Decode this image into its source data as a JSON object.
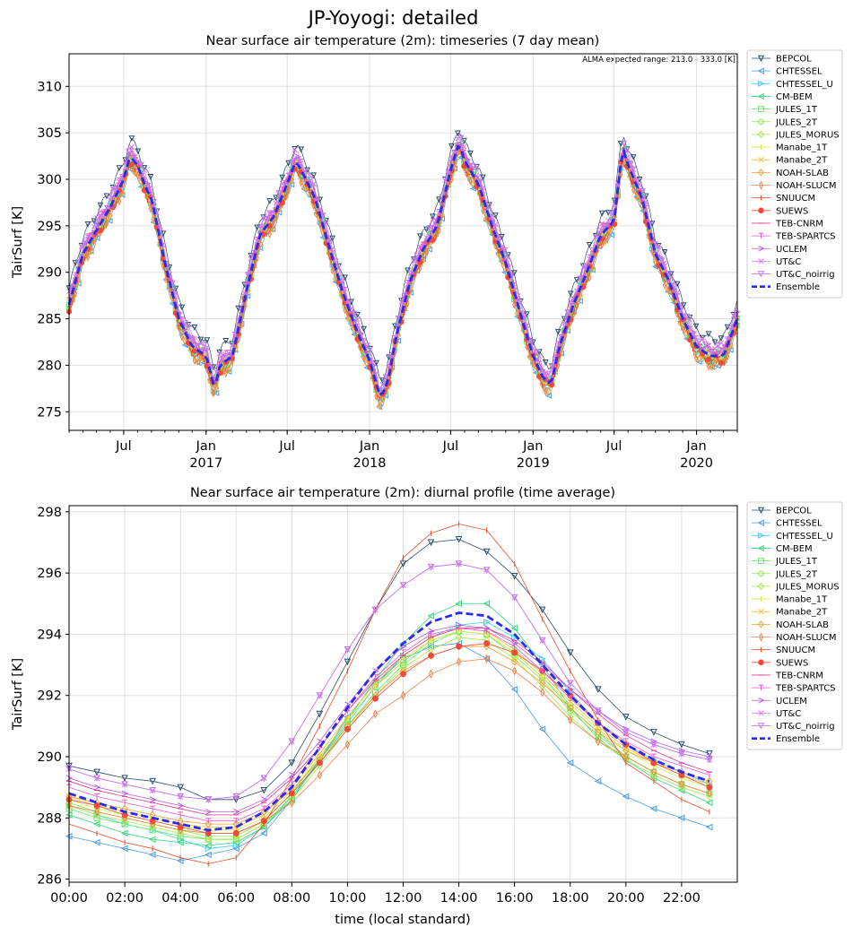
{
  "figure": {
    "suptitle": "JP-Yoyogi: detailed"
  },
  "chart_data": [
    {
      "type": "line",
      "title": "Near surface air temperature (2m): timeseries (7 day mean)",
      "annotation": "ALMA expected range: 213.0 - 333.0 [K]",
      "xlabel": "",
      "ylabel": "TairSurf [K]",
      "xlim": [
        "2016-03-01",
        "2020-04-01"
      ],
      "ylim": [
        273,
        313.5
      ],
      "yticks": [
        275,
        280,
        285,
        290,
        295,
        300,
        305,
        310
      ],
      "xticks": [
        {
          "date": "2016-07-01",
          "label": "Jul",
          "year": ""
        },
        {
          "date": "2017-01-01",
          "label": "Jan",
          "year": "2017"
        },
        {
          "date": "2017-07-01",
          "label": "Jul",
          "year": ""
        },
        {
          "date": "2018-01-01",
          "label": "Jan",
          "year": "2018"
        },
        {
          "date": "2018-07-01",
          "label": "Jul",
          "year": ""
        },
        {
          "date": "2019-01-01",
          "label": "Jan",
          "year": "2019"
        },
        {
          "date": "2019-07-01",
          "label": "Jul",
          "year": ""
        },
        {
          "date": "2020-01-01",
          "label": "Jan",
          "year": "2020"
        }
      ],
      "grid": true,
      "legend_position": "outside-right",
      "ensemble": {
        "name": "Ensemble",
        "dates": [
          "2016-03-01",
          "2016-04-01",
          "2016-05-01",
          "2016-06-01",
          "2016-07-01",
          "2016-07-15",
          "2016-08-01",
          "2016-08-20",
          "2016-09-01",
          "2016-10-01",
          "2016-11-01",
          "2016-12-01",
          "2017-01-01",
          "2017-01-20",
          "2017-02-01",
          "2017-03-01",
          "2017-04-01",
          "2017-05-01",
          "2017-06-01",
          "2017-07-01",
          "2017-07-20",
          "2017-08-01",
          "2017-09-01",
          "2017-10-01",
          "2017-11-01",
          "2017-12-01",
          "2018-01-01",
          "2018-01-25",
          "2018-02-10",
          "2018-03-01",
          "2018-04-01",
          "2018-05-01",
          "2018-06-01",
          "2018-07-01",
          "2018-07-20",
          "2018-08-01",
          "2018-09-01",
          "2018-10-01",
          "2018-11-01",
          "2018-12-01",
          "2019-01-01",
          "2019-01-25",
          "2019-02-10",
          "2019-03-01",
          "2019-04-01",
          "2019-05-01",
          "2019-06-01",
          "2019-07-01",
          "2019-07-20",
          "2019-08-01",
          "2019-09-01",
          "2019-10-01",
          "2019-11-01",
          "2019-12-01",
          "2020-01-01",
          "2020-02-01",
          "2020-03-01",
          "2020-04-01"
        ],
        "values": [
          286.5,
          292.0,
          294.5,
          297.0,
          300.0,
          302.5,
          301.5,
          299.0,
          298.0,
          291.0,
          285.0,
          282.0,
          281.0,
          277.5,
          280.0,
          281.0,
          288.0,
          294.0,
          296.0,
          299.5,
          302.0,
          301.0,
          298.0,
          293.0,
          288.0,
          284.0,
          280.5,
          276.5,
          278.0,
          283.0,
          289.0,
          292.5,
          295.0,
          301.0,
          304.0,
          302.0,
          299.5,
          295.0,
          291.0,
          286.0,
          281.0,
          278.5,
          278.0,
          282.0,
          286.5,
          290.0,
          294.0,
          295.5,
          303.5,
          301.5,
          298.0,
          292.0,
          289.0,
          285.0,
          282.0,
          281.0,
          281.0,
          285.0
        ]
      },
      "series": [
        {
          "name": "BEPCOL",
          "color": "#2a4d69",
          "marker": "tri-down",
          "offset": 1.8
        },
        {
          "name": "CHTESSEL",
          "color": "#4a9ee8",
          "marker": "tri-left",
          "offset": -1.0
        },
        {
          "name": "CHTESSEL_U",
          "color": "#3fd0f0",
          "marker": "tri-right",
          "offset": -0.4
        },
        {
          "name": "CM-BEM",
          "color": "#33d977",
          "marker": "tri-left",
          "offset": 0.2
        },
        {
          "name": "JULES_1T",
          "color": "#5ee85e",
          "marker": "square",
          "offset": -0.3
        },
        {
          "name": "JULES_2T",
          "color": "#8ee84a",
          "marker": "circle",
          "offset": -0.2
        },
        {
          "name": "JULES_MORUS",
          "color": "#a6e84a",
          "marker": "diamond",
          "offset": -0.1
        },
        {
          "name": "Manabe_1T",
          "color": "#d8e84a",
          "marker": "plus",
          "offset": 0.1
        },
        {
          "name": "Manabe_2T",
          "color": "#f5c23a",
          "marker": "x",
          "offset": 0.0
        },
        {
          "name": "NOAH-SLAB",
          "color": "#f0a030",
          "marker": "diamond",
          "offset": -0.8
        },
        {
          "name": "NOAH-SLUCM",
          "color": "#f08040",
          "marker": "thin-diamond",
          "offset": -0.9
        },
        {
          "name": "SNUUCM",
          "color": "#e8502a",
          "marker": "vline",
          "offset": -0.6
        },
        {
          "name": "SUEWS",
          "color": "#f04a3a",
          "marker": "star",
          "offset": -0.3
        },
        {
          "name": "TEB-CNRM",
          "color": "#e83a8c",
          "marker": "hline",
          "offset": 0.3
        },
        {
          "name": "TEB-SPARTCS",
          "color": "#e85ad8",
          "marker": "tee",
          "offset": 0.5
        },
        {
          "name": "UCLEM",
          "color": "#b65ae8",
          "marker": "caret",
          "offset": 0.4
        },
        {
          "name": "UT&C",
          "color": "#d878e8",
          "marker": "x",
          "offset": 1.0
        },
        {
          "name": "UT&C_noirrig",
          "color": "#c47af0",
          "marker": "tri-down",
          "offset": 0.7
        },
        {
          "name": "Ensemble",
          "color": "#2b2bea",
          "marker": "dash",
          "offset": 0.0
        }
      ]
    },
    {
      "type": "line",
      "title": "Near surface air temperature (2m): diurnal profile (time average)",
      "xlabel": "time (local standard)",
      "ylabel": "TairSurf [K]",
      "xlim": [
        0,
        24
      ],
      "ylim": [
        285.9,
        298.2
      ],
      "yticks": [
        286,
        288,
        290,
        292,
        294,
        296,
        298
      ],
      "xticks": [
        {
          "hour": 0,
          "label": "00:00"
        },
        {
          "hour": 2,
          "label": "02:00"
        },
        {
          "hour": 4,
          "label": "04:00"
        },
        {
          "hour": 6,
          "label": "06:00"
        },
        {
          "hour": 8,
          "label": "08:00"
        },
        {
          "hour": 10,
          "label": "10:00"
        },
        {
          "hour": 12,
          "label": "12:00"
        },
        {
          "hour": 14,
          "label": "14:00"
        },
        {
          "hour": 16,
          "label": "16:00"
        },
        {
          "hour": 18,
          "label": "18:00"
        },
        {
          "hour": 20,
          "label": "20:00"
        },
        {
          "hour": 22,
          "label": "22:00"
        }
      ],
      "grid": true,
      "legend_position": "outside-right",
      "hours": [
        0,
        1,
        2,
        3,
        4,
        5,
        6,
        7,
        8,
        9,
        10,
        11,
        12,
        13,
        14,
        15,
        16,
        17,
        18,
        19,
        20,
        21,
        22,
        23
      ],
      "series": [
        {
          "name": "BEPCOL",
          "color": "#2a4d69",
          "marker": "tri-down",
          "values": [
            289.7,
            289.5,
            289.3,
            289.2,
            289.0,
            288.6,
            288.6,
            288.9,
            289.8,
            291.4,
            293.1,
            294.8,
            296.3,
            297.0,
            297.1,
            296.7,
            295.9,
            294.8,
            293.4,
            292.2,
            291.3,
            290.8,
            290.4,
            290.1
          ]
        },
        {
          "name": "CHTESSEL",
          "color": "#4a9ee8",
          "marker": "tri-left",
          "values": [
            287.4,
            287.2,
            287.0,
            286.8,
            286.6,
            286.8,
            287.0,
            287.5,
            288.6,
            289.9,
            291.3,
            292.4,
            293.2,
            293.6,
            293.7,
            293.2,
            292.2,
            290.9,
            289.8,
            289.2,
            288.7,
            288.3,
            288.0,
            287.7
          ]
        },
        {
          "name": "CHTESSEL_U",
          "color": "#3fd0f0",
          "marker": "tri-right",
          "values": [
            288.4,
            288.1,
            287.8,
            287.6,
            287.3,
            287.0,
            287.1,
            287.7,
            288.7,
            289.9,
            291.1,
            292.3,
            293.3,
            293.9,
            294.3,
            294.4,
            293.9,
            293.2,
            292.1,
            291.1,
            290.4,
            289.9,
            289.5,
            289.1
          ]
        },
        {
          "name": "CM-BEM",
          "color": "#33d977",
          "marker": "tri-left",
          "values": [
            288.1,
            287.8,
            287.5,
            287.3,
            287.2,
            287.1,
            287.2,
            287.7,
            288.6,
            289.9,
            291.2,
            292.5,
            293.7,
            294.6,
            295.0,
            295.0,
            294.2,
            293.0,
            291.6,
            290.6,
            289.9,
            289.3,
            288.9,
            288.5
          ]
        },
        {
          "name": "JULES_1T",
          "color": "#5ee85e",
          "marker": "square",
          "values": [
            288.3,
            288.0,
            287.8,
            287.6,
            287.4,
            287.3,
            287.3,
            287.8,
            288.7,
            289.8,
            291.0,
            292.1,
            293.0,
            293.7,
            294.1,
            294.0,
            293.4,
            292.6,
            291.6,
            290.8,
            290.0,
            289.5,
            289.1,
            288.8
          ]
        },
        {
          "name": "JULES_2T",
          "color": "#8ee84a",
          "marker": "circle",
          "values": [
            288.5,
            288.2,
            288.0,
            287.8,
            287.6,
            287.4,
            287.4,
            287.9,
            288.8,
            290.0,
            291.2,
            292.3,
            293.1,
            293.8,
            294.1,
            294.0,
            293.3,
            292.5,
            291.5,
            290.7,
            290.0,
            289.5,
            289.1,
            288.8
          ]
        },
        {
          "name": "JULES_MORUS",
          "color": "#a6e84a",
          "marker": "diamond",
          "values": [
            288.4,
            288.1,
            287.9,
            287.7,
            287.5,
            287.3,
            287.3,
            287.8,
            288.6,
            289.7,
            290.9,
            292.0,
            292.9,
            293.5,
            293.9,
            293.8,
            293.2,
            292.3,
            291.3,
            290.5,
            289.9,
            289.4,
            289.0,
            288.7
          ]
        },
        {
          "name": "Manabe_1T",
          "color": "#d8e84a",
          "marker": "plus",
          "values": [
            288.6,
            288.3,
            288.1,
            287.9,
            287.7,
            287.6,
            287.6,
            288.0,
            288.9,
            290.0,
            291.2,
            292.3,
            293.2,
            293.8,
            294.1,
            294.0,
            293.4,
            292.6,
            291.7,
            290.9,
            290.2,
            289.7,
            289.3,
            289.0
          ]
        },
        {
          "name": "Manabe_2T",
          "color": "#f5c23a",
          "marker": "x",
          "values": [
            288.7,
            288.4,
            288.2,
            288.0,
            287.8,
            287.7,
            287.7,
            288.1,
            289.0,
            290.1,
            291.3,
            292.4,
            293.3,
            293.9,
            294.2,
            294.1,
            293.5,
            292.7,
            291.8,
            291.0,
            290.3,
            289.8,
            289.4,
            289.1
          ]
        },
        {
          "name": "NOAH-SLAB",
          "color": "#f0a030",
          "marker": "diamond",
          "values": [
            288.7,
            288.5,
            288.3,
            288.1,
            287.9,
            287.8,
            287.8,
            288.2,
            288.9,
            289.9,
            291.0,
            292.0,
            292.8,
            293.3,
            293.6,
            293.6,
            293.1,
            292.4,
            291.6,
            290.8,
            290.2,
            289.8,
            289.5,
            289.2
          ]
        },
        {
          "name": "NOAH-SLUCM",
          "color": "#f08040",
          "marker": "thin-diamond",
          "values": [
            288.4,
            288.2,
            288.0,
            287.8,
            287.6,
            287.5,
            287.5,
            287.9,
            288.5,
            289.4,
            290.4,
            291.4,
            292.0,
            292.7,
            293.1,
            293.2,
            292.8,
            292.1,
            291.2,
            290.5,
            290.0,
            289.5,
            289.1,
            288.8
          ]
        },
        {
          "name": "SNUUCM",
          "color": "#e8502a",
          "marker": "vline",
          "values": [
            287.8,
            287.5,
            287.2,
            287.0,
            286.7,
            286.5,
            286.7,
            287.8,
            289.3,
            291.0,
            292.8,
            294.8,
            296.5,
            297.3,
            297.6,
            297.4,
            296.3,
            294.5,
            292.8,
            291.2,
            289.8,
            289.2,
            288.6,
            288.2
          ]
        },
        {
          "name": "SUEWS",
          "color": "#f04a3a",
          "marker": "star",
          "values": [
            288.6,
            288.4,
            288.1,
            287.9,
            287.7,
            287.5,
            287.5,
            287.9,
            288.8,
            289.8,
            290.9,
            291.9,
            292.7,
            293.3,
            293.6,
            293.7,
            293.4,
            292.8,
            292.0,
            291.1,
            290.4,
            289.8,
            289.4,
            289.0
          ]
        },
        {
          "name": "TEB-CNRM",
          "color": "#e83a8c",
          "marker": "hline",
          "values": [
            289.2,
            288.9,
            288.7,
            288.5,
            288.3,
            288.1,
            288.1,
            288.5,
            289.3,
            290.3,
            291.5,
            292.5,
            293.3,
            293.9,
            294.2,
            294.2,
            293.8,
            293.1,
            292.2,
            291.4,
            290.7,
            290.2,
            289.8,
            289.5
          ]
        },
        {
          "name": "TEB-SPARTCS",
          "color": "#e85ad8",
          "marker": "tee",
          "values": [
            289.0,
            288.7,
            288.5,
            288.3,
            288.1,
            287.9,
            287.9,
            288.3,
            289.1,
            290.3,
            291.5,
            292.6,
            293.4,
            294.0,
            294.2,
            294.1,
            293.6,
            292.8,
            291.9,
            291.1,
            290.5,
            290.0,
            289.7,
            289.4
          ]
        },
        {
          "name": "UCLEM",
          "color": "#b65ae8",
          "marker": "caret",
          "values": [
            289.3,
            289.0,
            288.8,
            288.6,
            288.4,
            288.2,
            288.2,
            288.6,
            289.4,
            290.5,
            291.7,
            292.8,
            293.6,
            294.1,
            294.3,
            294.2,
            293.7,
            293.0,
            292.2,
            291.5,
            290.9,
            290.5,
            290.2,
            290.0
          ]
        },
        {
          "name": "UT&C",
          "color": "#d878e8",
          "marker": "x",
          "values": [
            289.6,
            289.3,
            289.1,
            288.9,
            288.7,
            288.6,
            288.7,
            289.3,
            290.5,
            292.0,
            293.5,
            294.8,
            295.6,
            296.2,
            296.3,
            296.1,
            295.2,
            293.8,
            292.4,
            291.5,
            290.8,
            290.4,
            290.1,
            289.9
          ]
        },
        {
          "name": "UT&C_noirrig",
          "color": "#c47af0",
          "marker": "tri-down",
          "values": [
            289.6,
            289.3,
            289.1,
            288.9,
            288.7,
            288.6,
            288.7,
            289.3,
            290.5,
            292.0,
            293.5,
            294.8,
            295.6,
            296.2,
            296.3,
            296.1,
            295.2,
            293.8,
            292.4,
            291.5,
            290.8,
            290.4,
            290.1,
            289.9
          ]
        },
        {
          "name": "Ensemble",
          "color": "#2b2bea",
          "marker": "dash",
          "values": [
            288.8,
            288.5,
            288.2,
            288.0,
            287.8,
            287.6,
            287.7,
            288.2,
            289.0,
            290.3,
            291.6,
            292.8,
            293.7,
            294.4,
            294.7,
            294.6,
            294.0,
            293.0,
            292.0,
            291.1,
            290.4,
            289.9,
            289.5,
            289.2
          ]
        }
      ]
    }
  ]
}
